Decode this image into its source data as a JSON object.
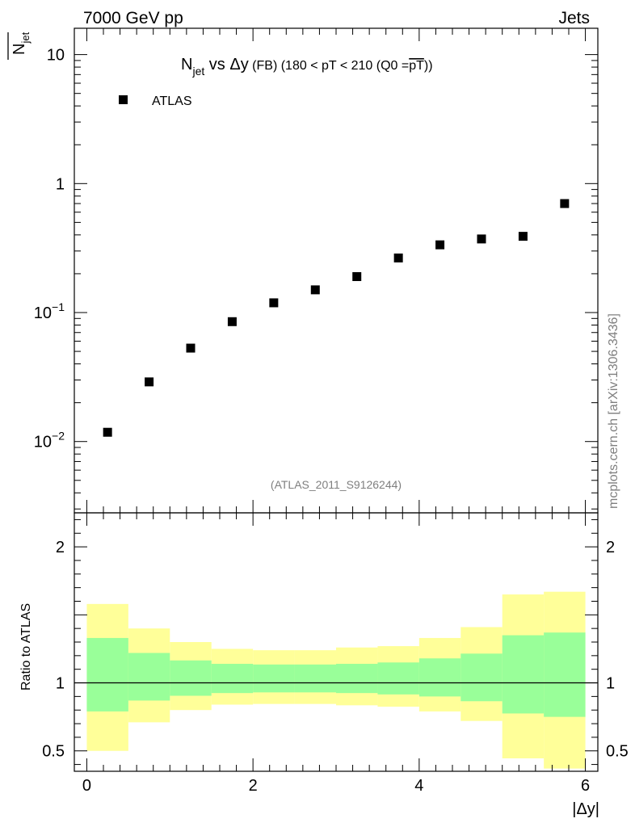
{
  "header": {
    "energy_label": "7000 GeV pp",
    "process_label": "Jets"
  },
  "watermark": "mcplots.cern.ch [arXiv:1306.3436]",
  "analysis_label": "(ATLAS_2011_S9126244)",
  "chart_data": [
    {
      "type": "scatter",
      "panel": "main",
      "title": {
        "text_a": "N",
        "sub_a": "jet",
        "text_b": " vs Δy",
        "text_c": " (FB) (180 < pT < 210 (Q0 =",
        "overlined": "pT",
        "text_d": "))"
      },
      "ylabel": {
        "base": "N",
        "sub": "jet"
      },
      "yscale": "log",
      "ylim": [
        0.0028,
        16
      ],
      "ytick_labels": [
        {
          "value": 10,
          "label": "10"
        },
        {
          "value": 1,
          "label": "1"
        },
        {
          "value": 0.1,
          "base": "10",
          "exp": "−1"
        },
        {
          "value": 0.01,
          "base": "10",
          "exp": "−2"
        }
      ],
      "xlim": [
        -0.15,
        6.15
      ],
      "legend": {
        "position": "top-left",
        "entry": "ATLAS"
      },
      "series": [
        {
          "name": "ATLAS",
          "x": [
            0.25,
            0.75,
            1.25,
            1.75,
            2.25,
            2.75,
            3.25,
            3.75,
            4.25,
            4.75,
            5.25,
            5.75
          ],
          "y": [
            0.0118,
            0.029,
            0.053,
            0.085,
            0.119,
            0.15,
            0.19,
            0.265,
            0.335,
            0.372,
            0.39,
            0.7
          ]
        }
      ]
    },
    {
      "type": "area",
      "panel": "ratio",
      "ylabel": "Ratio to ATLAS",
      "xlabel": "|Δy|",
      "ylim": [
        0.35,
        2.25
      ],
      "xlim": [
        -0.15,
        6.15
      ],
      "ytick_labels": [
        {
          "value": 0.5,
          "label": "0.5"
        },
        {
          "value": 1,
          "label": "1"
        },
        {
          "value": 2,
          "label": "2"
        }
      ],
      "xtick_labels": [
        {
          "value": 0,
          "label": "0"
        },
        {
          "value": 2,
          "label": "2"
        },
        {
          "value": 4,
          "label": "4"
        },
        {
          "value": 6,
          "label": "6"
        }
      ],
      "reference_line": 1,
      "bin_edges": [
        0,
        0.5,
        1,
        1.5,
        2,
        2.5,
        3,
        3.5,
        4,
        4.5,
        5,
        5.5,
        6
      ],
      "bands": [
        {
          "color": "#ffff99",
          "low": [
            0.5,
            0.71,
            0.8,
            0.84,
            0.845,
            0.845,
            0.835,
            0.825,
            0.79,
            0.72,
            0.445,
            0.37
          ],
          "high": [
            1.58,
            1.4,
            1.3,
            1.25,
            1.24,
            1.24,
            1.26,
            1.27,
            1.33,
            1.41,
            1.65,
            1.67
          ]
        },
        {
          "color": "#99ff99",
          "low": [
            0.79,
            0.87,
            0.905,
            0.925,
            0.93,
            0.93,
            0.925,
            0.915,
            0.9,
            0.865,
            0.775,
            0.75
          ],
          "high": [
            1.33,
            1.22,
            1.165,
            1.14,
            1.135,
            1.135,
            1.14,
            1.15,
            1.18,
            1.215,
            1.35,
            1.37
          ]
        }
      ]
    }
  ]
}
